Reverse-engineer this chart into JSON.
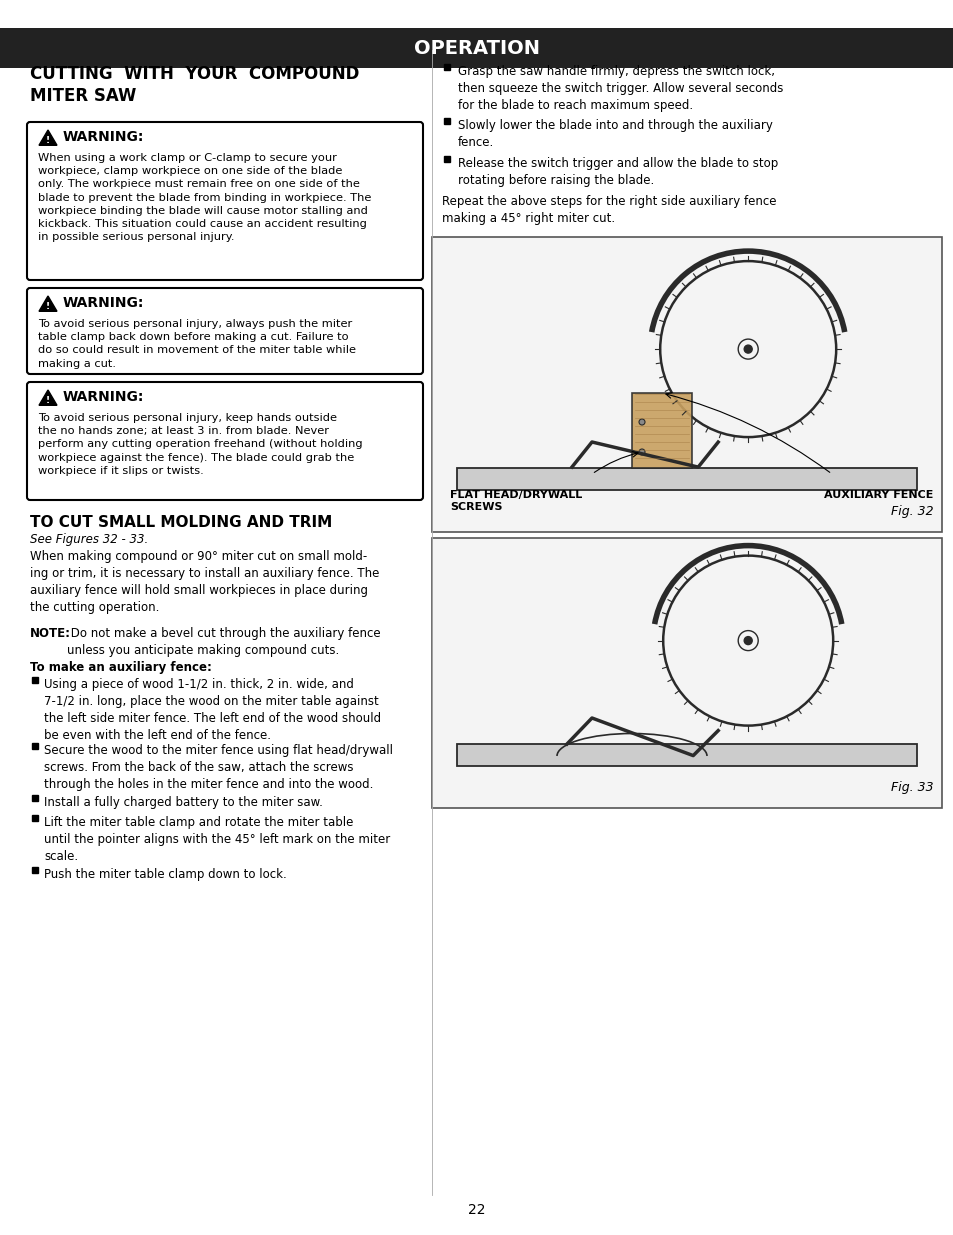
{
  "page_bg": "#ffffff",
  "header_bg": "#222222",
  "header_text": "OPERATION",
  "header_text_color": "#ffffff",
  "section_title": "CUTTING  WITH  YOUR  COMPOUND\nMITER SAW",
  "warning1_title": "WARNING:",
  "warning1_body": "When using a work clamp or C-clamp to secure your\nworkpiece, clamp workpiece on one side of the blade\nonly. The workpiece must remain free on one side of the\nblade to prevent the blade from binding in workpiece. The\nworkpiece binding the blade will cause motor stalling and\nkickback. This situation could cause an accident resulting\nin possible serious personal injury.",
  "warning2_title": "WARNING:",
  "warning2_body": "To avoid serious personal injury, always push the miter\ntable clamp back down before making a cut. Failure to\ndo so could result in movement of the miter table while\nmaking a cut.",
  "warning3_title": "WARNING:",
  "warning3_body": "To avoid serious personal injury, keep hands outside\nthe no hands zone; at least 3 in. from blade. Never\nperform any cutting operation freehand (without holding\nworkpiece against the fence). The blade could grab the\nworkpiece if it slips or twists.",
  "section2_title": "TO CUT SMALL MOLDING AND TRIM",
  "section2_subtitle": "See Figures 32 - 33.",
  "section2_para1": "When making compound or 90° miter cut on small mold-\ning or trim, it is necessary to install an auxiliary fence. The\nauxiliary fence will hold small workpieces in place during\nthe cutting operation.",
  "section2_note_bold": "NOTE:",
  "section2_note_rest": " Do not make a bevel cut through the auxiliary fence\nunless you anticipate making compound cuts.",
  "section2_subtitle2": "To make an auxiliary fence:",
  "bullet1": "Using a piece of wood 1-1/2 in. thick, 2 in. wide, and\n7-1/2 in. long, place the wood on the miter table against\nthe left side miter fence. The left end of the wood should\nbe even with the left end of the fence.",
  "bullet2": "Secure the wood to the miter fence using flat head/drywall\nscrews. From the back of the saw, attach the screws\nthrough the holes in the miter fence and into the wood.",
  "bullet3": "Install a fully charged battery to the miter saw.",
  "bullet4": "Lift the miter table clamp and rotate the miter table\nuntil the pointer aligns with the 45° left mark on the miter\nscale.",
  "bullet5": "Push the miter table clamp down to lock.",
  "right_para1": "Grasp the saw handle firmly, depress the switch lock,\nthen squeeze the switch trigger. Allow several seconds\nfor the blade to reach maximum speed.",
  "right_para2": "Slowly lower the blade into and through the auxiliary\nfence.",
  "right_para3": "Release the switch trigger and allow the blade to stop\nrotating before raising the blade.",
  "right_para4": "Repeat the above steps for the right side auxiliary fence\nmaking a 45° right miter cut.",
  "fig32_label": "Fig. 32",
  "fig33_label": "Fig. 33",
  "fig32_caption_left": "FLAT HEAD/DRYWALL\nSCREWS",
  "fig32_caption_right": "AUXILIARY FENCE",
  "page_number": "22",
  "body_font_size": 8.5,
  "warning_title_font_size": 10,
  "section_title_font_size": 12,
  "header_font_size": 14
}
